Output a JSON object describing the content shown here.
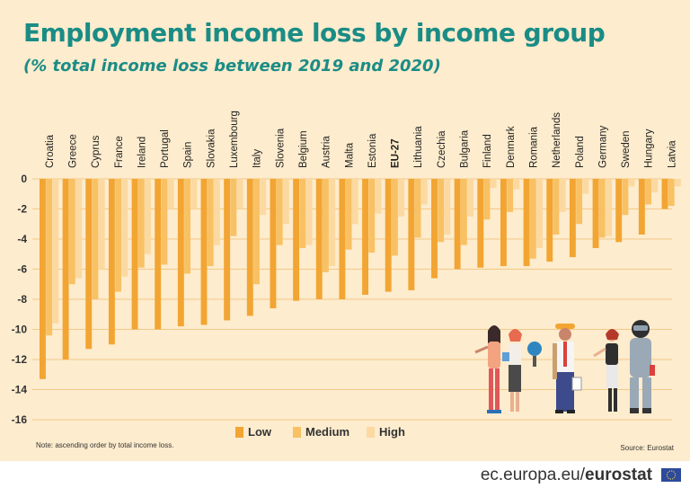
{
  "header": {
    "title": "Employment income loss by income group",
    "subtitle": "(% total income loss between 2019 and 2020)"
  },
  "chart_data": {
    "type": "bar",
    "categories": [
      "Croatia",
      "Greece",
      "Cyprus",
      "France",
      "Ireland",
      "Portugal",
      "Spain",
      "Slovakia",
      "Luxembourg",
      "Italy",
      "Slovenia",
      "Belgium",
      "Austria",
      "Malta",
      "Estonia",
      "EU-27",
      "Lithuania",
      "Czechia",
      "Bulgaria",
      "Finland",
      "Denmark",
      "Romania",
      "Netherlands",
      "Poland",
      "Germany",
      "Sweden",
      "Hungary",
      "Latvia"
    ],
    "emphasized_category": "EU-27",
    "series": [
      {
        "name": "Low",
        "color": "#f2a532",
        "values": [
          -13.3,
          -12.0,
          -11.3,
          -11.0,
          -10.0,
          -10.0,
          -9.8,
          -9.7,
          -9.4,
          -9.1,
          -8.6,
          -8.1,
          -8.0,
          -8.0,
          -7.7,
          -7.5,
          -7.4,
          -6.6,
          -6.0,
          -5.9,
          -5.8,
          -5.8,
          -5.5,
          -5.2,
          -4.6,
          -4.2,
          -3.7,
          -2.0
        ]
      },
      {
        "name": "Medium",
        "color": "#f8c164",
        "values": [
          -10.4,
          -7.0,
          -8.0,
          -7.5,
          -5.9,
          -5.7,
          -6.3,
          -5.8,
          -3.8,
          -7.0,
          -4.4,
          -4.6,
          -6.2,
          -4.7,
          -4.9,
          -5.1,
          -3.9,
          -4.2,
          -4.4,
          -2.7,
          -2.2,
          -5.3,
          -3.7,
          -3.0,
          -3.9,
          -2.4,
          -1.7,
          -1.8
        ]
      },
      {
        "name": "High",
        "color": "#fbd9a1",
        "values": [
          -9.6,
          -6.6,
          -6.0,
          -6.5,
          -5.0,
          -2.0,
          -2.0,
          -4.4,
          -2.0,
          -2.4,
          -3.0,
          -4.4,
          -5.8,
          -3.0,
          -2.3,
          -2.5,
          -1.7,
          -3.7,
          -2.5,
          -0.6,
          -0.7,
          -4.6,
          -2.2,
          -1.0,
          -3.8,
          -0.5,
          -0.9,
          -0.5
        ]
      }
    ],
    "yticks": [
      0,
      -2,
      -4,
      -6,
      -8,
      -10,
      -12,
      -14,
      -16
    ],
    "ylim": [
      -16,
      0
    ],
    "grid": true,
    "legend_position": "bottom"
  },
  "notes": {
    "note": "Note: ascending order by total income loss.",
    "source": "Source:  Eurostat"
  },
  "footer": {
    "brand_prefix": "ec.europa.eu/",
    "brand_name": "eurostat"
  }
}
